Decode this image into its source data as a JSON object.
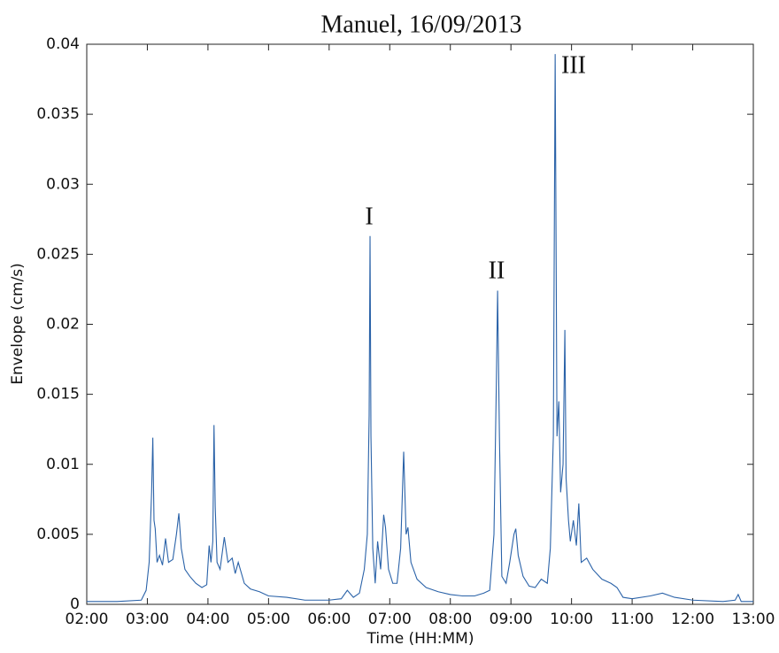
{
  "chart_data": {
    "type": "line",
    "title": "Manuel, 16/09/2013",
    "x_label": "Time (HH:MM)",
    "y_label": "Envelope (cm/s)",
    "color": "#2a62a8",
    "x": [
      2.0,
      2.5,
      2.9,
      2.98,
      3.03,
      3.07,
      3.09,
      3.11,
      3.13,
      3.16,
      3.2,
      3.25,
      3.3,
      3.35,
      3.42,
      3.48,
      3.52,
      3.56,
      3.62,
      3.7,
      3.8,
      3.9,
      3.98,
      4.02,
      4.05,
      4.08,
      4.1,
      4.12,
      4.15,
      4.2,
      4.27,
      4.33,
      4.4,
      4.45,
      4.5,
      4.6,
      4.7,
      4.85,
      5.0,
      5.3,
      5.6,
      6.0,
      6.2,
      6.3,
      6.4,
      6.5,
      6.58,
      6.63,
      6.66,
      6.675,
      6.69,
      6.72,
      6.76,
      6.8,
      6.85,
      6.9,
      6.93,
      6.98,
      7.05,
      7.12,
      7.18,
      7.23,
      7.27,
      7.3,
      7.35,
      7.45,
      7.6,
      7.8,
      8.0,
      8.2,
      8.4,
      8.55,
      8.65,
      8.72,
      8.76,
      8.78,
      8.81,
      8.85,
      8.92,
      8.98,
      9.05,
      9.08,
      9.12,
      9.2,
      9.3,
      9.4,
      9.5,
      9.6,
      9.65,
      9.7,
      9.73,
      9.76,
      9.79,
      9.82,
      9.86,
      9.89,
      9.91,
      9.95,
      9.98,
      10.03,
      10.08,
      10.12,
      10.16,
      10.25,
      10.35,
      10.5,
      10.65,
      10.75,
      10.85,
      11.0,
      11.3,
      11.5,
      11.7,
      12.0,
      12.5,
      12.7,
      12.75,
      12.8,
      13.0
    ],
    "values": [
      0.0002,
      0.0002,
      0.0003,
      0.001,
      0.003,
      0.008,
      0.0119,
      0.006,
      0.0054,
      0.003,
      0.0035,
      0.0028,
      0.0047,
      0.003,
      0.0032,
      0.005,
      0.0065,
      0.004,
      0.0025,
      0.002,
      0.0015,
      0.0012,
      0.0014,
      0.0042,
      0.003,
      0.0045,
      0.0128,
      0.007,
      0.003,
      0.0025,
      0.0048,
      0.003,
      0.0033,
      0.0022,
      0.003,
      0.0015,
      0.0011,
      0.0009,
      0.0006,
      0.0005,
      0.0003,
      0.0003,
      0.0004,
      0.001,
      0.0005,
      0.0008,
      0.0025,
      0.005,
      0.0135,
      0.0263,
      0.012,
      0.004,
      0.0015,
      0.0045,
      0.0025,
      0.0064,
      0.0055,
      0.0025,
      0.0015,
      0.0015,
      0.004,
      0.0109,
      0.005,
      0.0055,
      0.003,
      0.0018,
      0.0012,
      0.0009,
      0.0007,
      0.0006,
      0.0006,
      0.0008,
      0.001,
      0.005,
      0.016,
      0.0224,
      0.012,
      0.002,
      0.0015,
      0.003,
      0.005,
      0.0054,
      0.0035,
      0.002,
      0.0013,
      0.0012,
      0.0018,
      0.0015,
      0.004,
      0.012,
      0.0393,
      0.012,
      0.0145,
      0.008,
      0.01,
      0.0196,
      0.009,
      0.006,
      0.0045,
      0.006,
      0.0042,
      0.0072,
      0.003,
      0.0033,
      0.0025,
      0.0018,
      0.0015,
      0.0012,
      0.0005,
      0.0004,
      0.0006,
      0.0008,
      0.0005,
      0.0003,
      0.0002,
      0.0003,
      0.0007,
      0.0002,
      0.0002
    ],
    "xlim": [
      2,
      13
    ],
    "xticks": [
      {
        "value": 2,
        "label": "02:00"
      },
      {
        "value": 3,
        "label": "03:00"
      },
      {
        "value": 4,
        "label": "04:00"
      },
      {
        "value": 5,
        "label": "05:00"
      },
      {
        "value": 6,
        "label": "06:00"
      },
      {
        "value": 7,
        "label": "07:00"
      },
      {
        "value": 8,
        "label": "08:00"
      },
      {
        "value": 9,
        "label": "09:00"
      },
      {
        "value": 10,
        "label": "10:00"
      },
      {
        "value": 11,
        "label": "11:00"
      },
      {
        "value": 12,
        "label": "12:00"
      },
      {
        "value": 13,
        "label": "13:00"
      }
    ],
    "ylim": [
      0,
      0.04
    ],
    "yticks": [
      0,
      0.005,
      0.01,
      0.015,
      0.02,
      0.025,
      0.03,
      0.035,
      0.04
    ],
    "annotations": [
      "I",
      "II",
      "III"
    ]
  }
}
